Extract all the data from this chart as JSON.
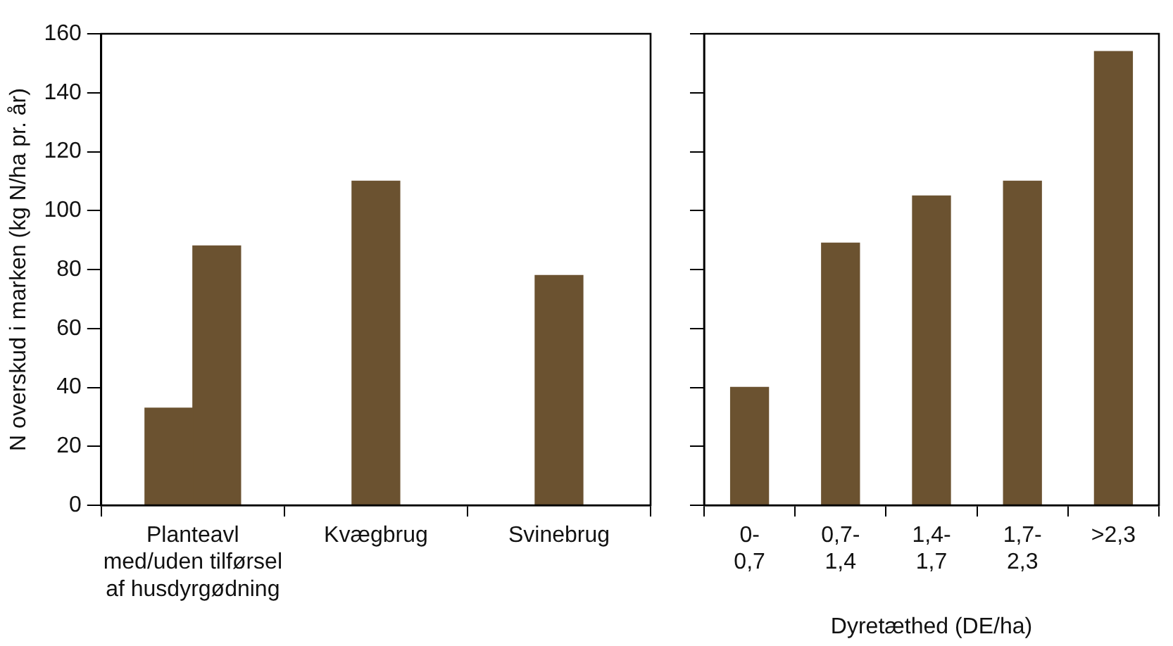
{
  "chart_data": [
    {
      "type": "bar",
      "ylabel": "N overskud i marken (kg N/ha pr. år)",
      "categories": [
        "Planteavl\nmed/uden tilførsel\naf husdyrgødning",
        "Kvægbrug",
        "Svinebrug"
      ],
      "series": [
        {
          "color": "#6b5230",
          "values": [
            33,
            null,
            null
          ]
        },
        {
          "color": "#6b5230",
          "values": [
            88,
            110,
            78
          ]
        }
      ],
      "ylim": [
        0,
        160
      ],
      "yticks": [
        0,
        20,
        40,
        60,
        80,
        100,
        120,
        140,
        160
      ],
      "grid": false,
      "legend": false
    },
    {
      "type": "bar",
      "xlabel": "Dyretæthed (DE/ha)",
      "categories": [
        "0-\n0,7",
        "0,7-\n1,4",
        "1,4-\n1,7",
        "1,7-\n2,3",
        ">2,3"
      ],
      "series": [
        {
          "color": "#6b5230",
          "values": [
            40,
            89,
            105,
            110,
            154
          ]
        }
      ],
      "ylim": [
        0,
        160
      ],
      "yticks": [
        0,
        20,
        40,
        60,
        80,
        100,
        120,
        140,
        160
      ],
      "grid": false,
      "legend": false,
      "tick_labels": "x"
    }
  ]
}
